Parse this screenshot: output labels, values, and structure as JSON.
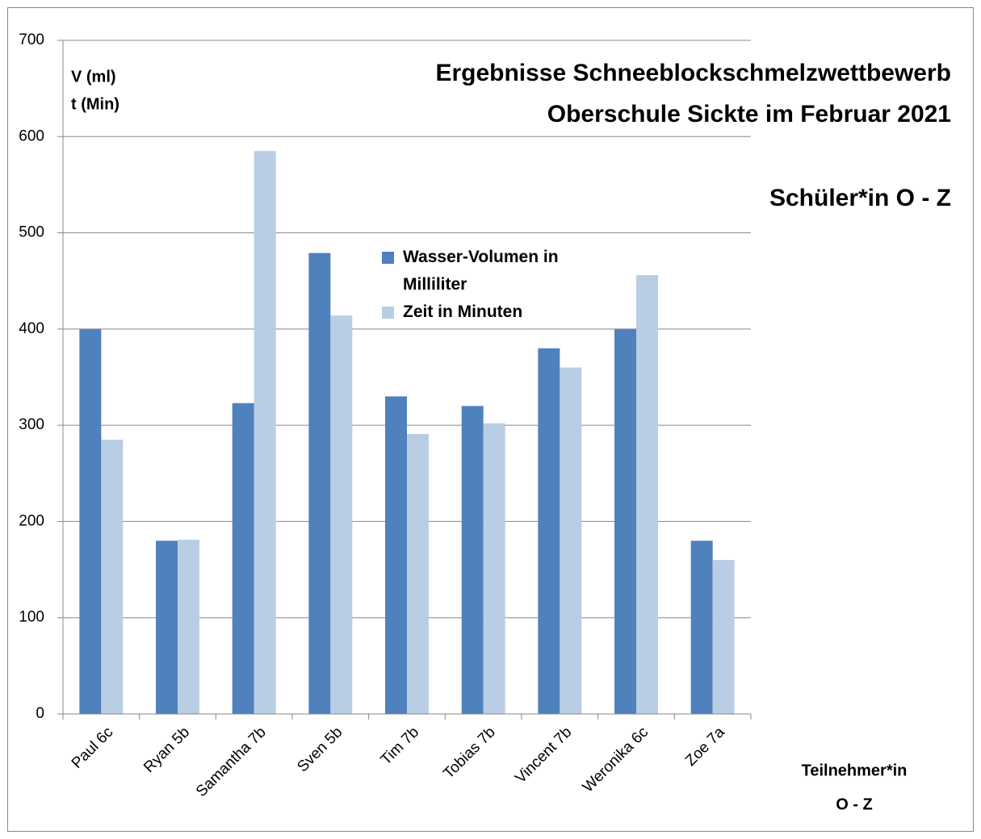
{
  "chart_data": {
    "type": "bar",
    "title": [
      "Ergebnisse Schneeblockschmelzwettbewerb",
      "Oberschule Sickte im Februar 2021"
    ],
    "subtitle": "Schüler*in  O - Z",
    "y_label": [
      "V (ml)",
      "t (Min)"
    ],
    "x_label": [
      "Teilnehmer*in",
      "O - Z"
    ],
    "categories": [
      "Paul 6c",
      "Ryan 5b",
      "Samantha 7b",
      "Sven 5b",
      "Tim 7b",
      "Tobias 7b",
      "Vincent 7b",
      "Weronika 6c",
      "Zoe 7a"
    ],
    "series": [
      {
        "name": "Wasser-Volumen in Milliliter",
        "color": "#4f81bd",
        "values": [
          400,
          180,
          323,
          479,
          330,
          320,
          380,
          400,
          180
        ]
      },
      {
        "name": "Zeit in Minuten",
        "color": "#b9cde5",
        "values": [
          285,
          181,
          585,
          414,
          291,
          302,
          360,
          456,
          160
        ]
      }
    ],
    "ylim": [
      0,
      700
    ],
    "yticks": [
      0,
      100,
      200,
      300,
      400,
      500,
      600,
      700
    ],
    "grid": true
  }
}
